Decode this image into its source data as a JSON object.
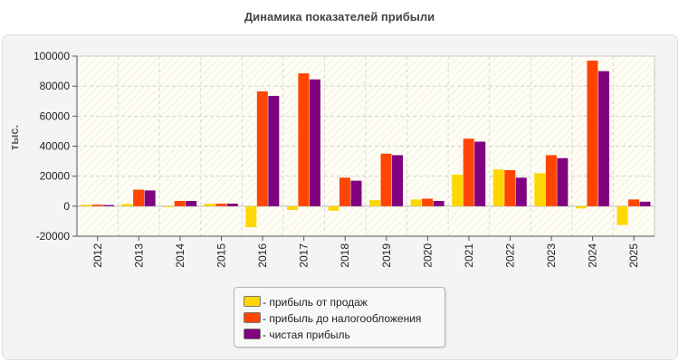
{
  "title": "Динамика показателей прибыли",
  "chart_data": {
    "type": "bar",
    "title": "Динамика показателей прибыли",
    "ylabel": "тыс.",
    "xlabel": "",
    "ylim": [
      -20000,
      100000
    ],
    "yticks": [
      -20000,
      0,
      20000,
      40000,
      60000,
      80000,
      100000
    ],
    "grid": true,
    "legend_position": "bottom-center",
    "categories": [
      "2012",
      "2013",
      "2014",
      "2015",
      "2016",
      "2017",
      "2018",
      "2019",
      "2020",
      "2021",
      "2022",
      "2023",
      "2024",
      "2025"
    ],
    "series": [
      {
        "name": "- прибыль от продаж",
        "color": "#ffd700",
        "values": [
          1000,
          1500,
          -400,
          1600,
          -14000,
          -2500,
          -3000,
          4000,
          4500,
          21000,
          24500,
          22000,
          -1500,
          -12500
        ]
      },
      {
        "name": "- прибыль до налогообложения",
        "color": "#ff4500",
        "values": [
          1000,
          11000,
          3500,
          1700,
          76500,
          88500,
          19000,
          35000,
          5000,
          45000,
          24000,
          34000,
          97000,
          4500
        ]
      },
      {
        "name": "- чистая прибыль",
        "color": "#800080",
        "values": [
          800,
          10500,
          3500,
          1700,
          73500,
          84500,
          17000,
          34000,
          3500,
          43000,
          19000,
          32000,
          90000,
          3000
        ]
      }
    ]
  }
}
